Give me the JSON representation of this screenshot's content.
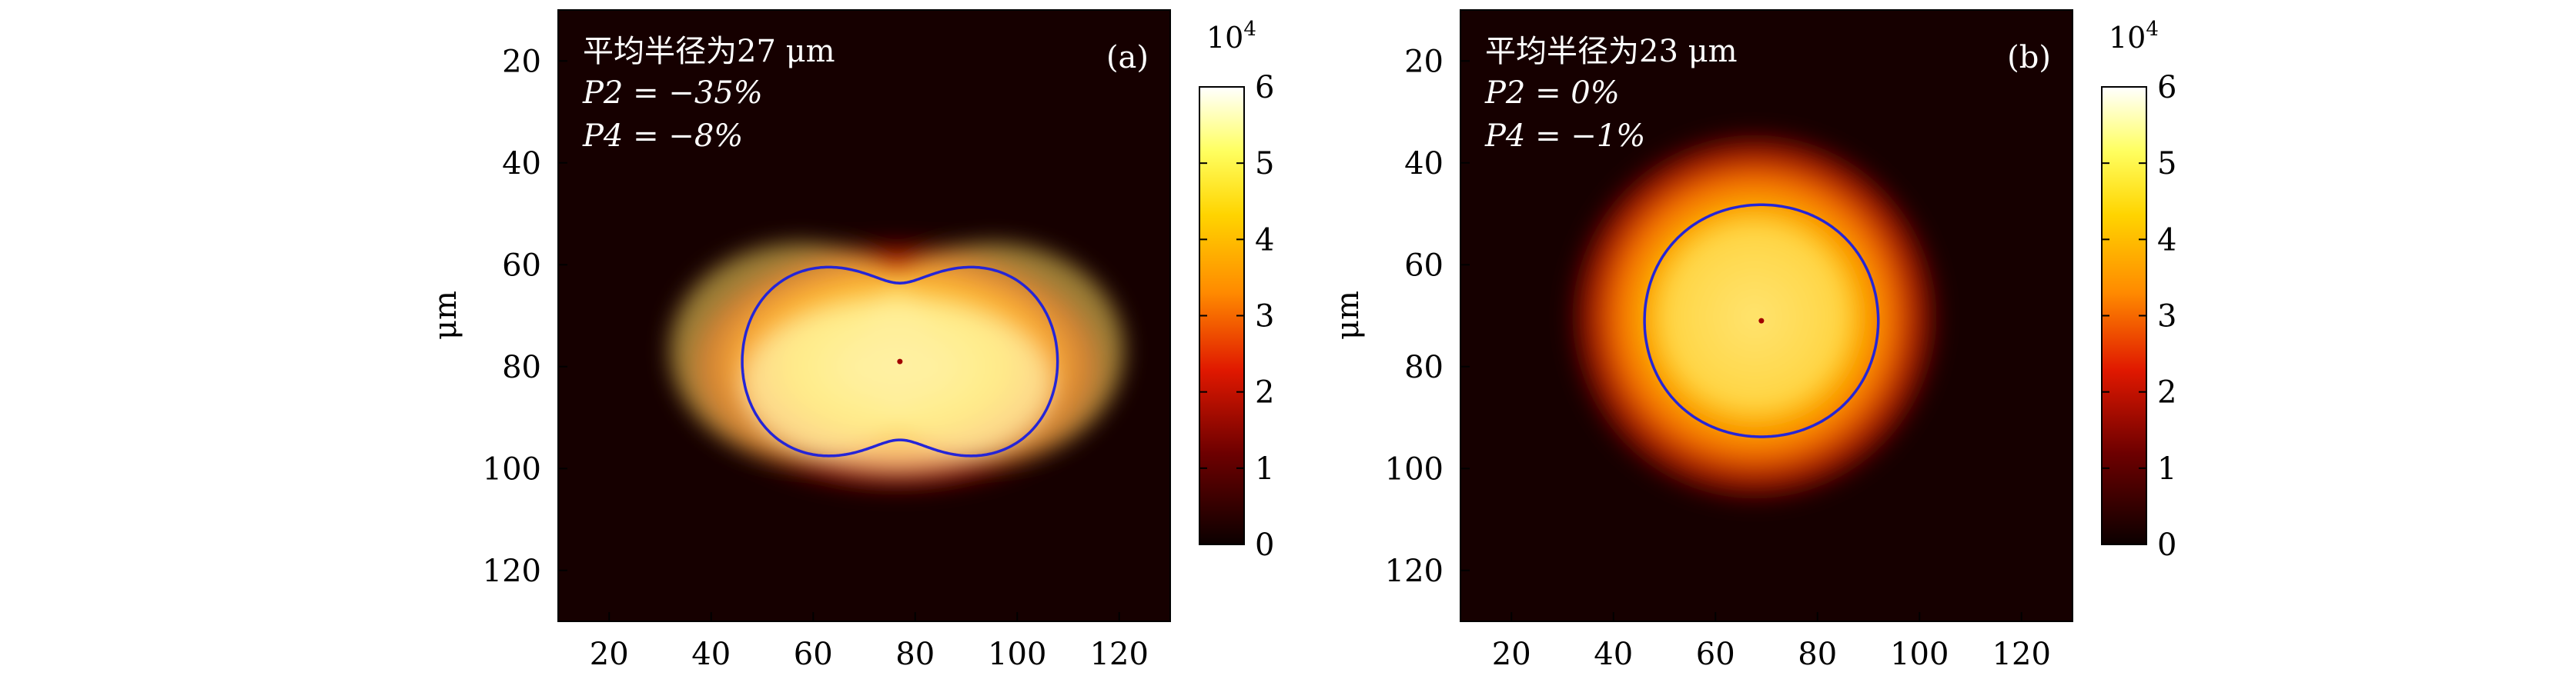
{
  "chart_data": [
    {
      "type": "heatmap",
      "panel_label": "(a)",
      "annotations": [
        "平均半径为27 μm",
        "P2 = −35%",
        "P4 = −8%"
      ],
      "ylabel": "μm",
      "xlabel": "",
      "x_ticks": [
        20,
        40,
        60,
        80,
        100,
        120
      ],
      "y_ticks": [
        20,
        40,
        60,
        80,
        100,
        120
      ],
      "xlim": [
        10,
        130
      ],
      "ylim": [
        130,
        10
      ],
      "colorbar": {
        "ticks": [
          0,
          1,
          2,
          3,
          4,
          5,
          6
        ],
        "exponent_label": "10",
        "exponent": "4",
        "range": [
          0,
          6
        ]
      },
      "center": {
        "x": 77,
        "y": 79
      },
      "mean_radius_um": 27,
      "P2_percent": -35,
      "P4_percent": -8,
      "contour_color": "#2525d6",
      "colormap": "hot"
    },
    {
      "type": "heatmap",
      "panel_label": "(b)",
      "annotations": [
        "平均半径为23 μm",
        "P2 = 0%",
        "P4 = −1%"
      ],
      "ylabel": "μm",
      "xlabel": "",
      "x_ticks": [
        20,
        40,
        60,
        80,
        100,
        120
      ],
      "y_ticks": [
        20,
        40,
        60,
        80,
        100,
        120
      ],
      "xlim": [
        10,
        130
      ],
      "ylim": [
        130,
        10
      ],
      "colorbar": {
        "ticks": [
          0,
          1,
          2,
          3,
          4,
          5,
          6
        ],
        "exponent_label": "10",
        "exponent": "4",
        "range": [
          0,
          6
        ]
      },
      "center": {
        "x": 69,
        "y": 71
      },
      "mean_radius_um": 23,
      "P2_percent": 0,
      "P4_percent": -1,
      "contour_color": "#2525d6",
      "colormap": "hot"
    }
  ]
}
